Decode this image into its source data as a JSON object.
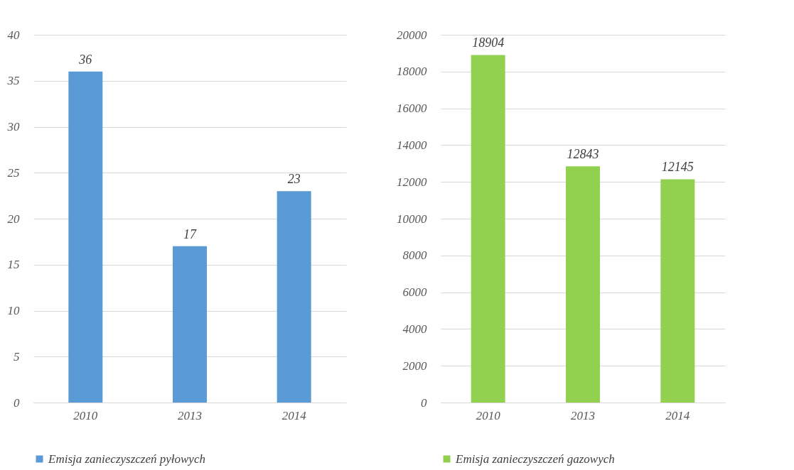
{
  "chart_data": [
    {
      "type": "bar",
      "categories": [
        "2010",
        "2013",
        "2014"
      ],
      "series": [
        {
          "name": "Emisja zanieczyszczeń pyłowych",
          "color": "#5b9bd5",
          "values": [
            36,
            17,
            23
          ]
        }
      ],
      "ylim": [
        0,
        40
      ],
      "yticks": [
        0,
        5,
        10,
        15,
        20,
        25,
        30,
        35,
        40
      ],
      "grid": "y",
      "legend": "bottom",
      "data_labels": true
    },
    {
      "type": "bar",
      "categories": [
        "2010",
        "2013",
        "2014"
      ],
      "series": [
        {
          "name": "Emisja zanieczyszczeń gazowych",
          "color": "#92d050",
          "values": [
            18904,
            12843,
            12145
          ]
        }
      ],
      "ylim": [
        0,
        20000
      ],
      "yticks": [
        0,
        2000,
        4000,
        6000,
        8000,
        10000,
        12000,
        14000,
        16000,
        18000,
        20000
      ],
      "grid": "y",
      "legend": "bottom",
      "data_labels": true
    }
  ]
}
